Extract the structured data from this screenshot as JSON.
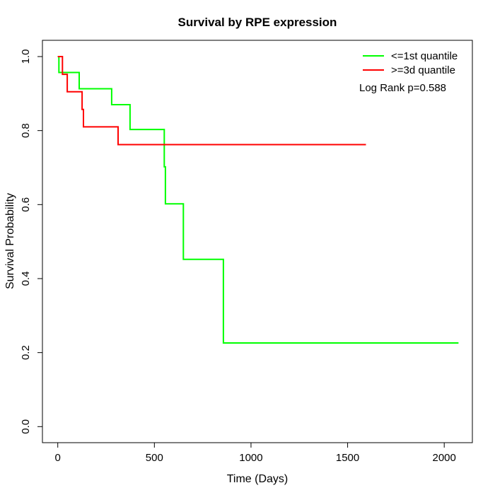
{
  "title": "Survival by RPE expression",
  "axes": {
    "xlabel": "Time (Days)",
    "ylabel": "Survival Probability",
    "xtick_labels": [
      "0",
      "500",
      "1000",
      "1500",
      "2000"
    ],
    "ytick_labels": [
      "0.0",
      "0.2",
      "0.4",
      "0.6",
      "0.8",
      "1.0"
    ]
  },
  "legend": {
    "entries": [
      {
        "label": "<=1st quantile",
        "color": "#00ff00"
      },
      {
        "label": ">=3d quantile",
        "color": "#ff0000"
      }
    ],
    "annotation": "Log Rank p=0.588"
  },
  "chart_data": {
    "type": "line",
    "subtype": "kaplan-meier-step",
    "title": "Survival by RPE expression",
    "xlabel": "Time (Days)",
    "ylabel": "Survival Probability",
    "xlim": [
      0,
      2150
    ],
    "ylim": [
      0,
      1
    ],
    "xticks": [
      0,
      500,
      1000,
      1500,
      2000
    ],
    "yticks": [
      0,
      0.2,
      0.4,
      0.6,
      0.8,
      1.0
    ],
    "grid": false,
    "legend_position": "top-right",
    "annotation": "Log Rank p=0.588",
    "series": [
      {
        "name": "<=1st quantile",
        "color": "#00ff00",
        "points": [
          [
            0,
            1.0
          ],
          [
            6,
            0.957
          ],
          [
            111,
            0.913
          ],
          [
            279,
            0.87
          ],
          [
            374,
            0.803
          ],
          [
            551,
            0.702
          ],
          [
            557,
            0.602
          ],
          [
            650,
            0.452
          ],
          [
            857,
            0.226
          ],
          [
            2074,
            0.226
          ]
        ]
      },
      {
        "name": ">=3d quantile",
        "color": "#ff0000",
        "points": [
          [
            0,
            1.0
          ],
          [
            24,
            0.952
          ],
          [
            49,
            0.905
          ],
          [
            126,
            0.857
          ],
          [
            133,
            0.81
          ],
          [
            312,
            0.762
          ],
          [
            1595,
            0.762
          ]
        ]
      }
    ]
  }
}
